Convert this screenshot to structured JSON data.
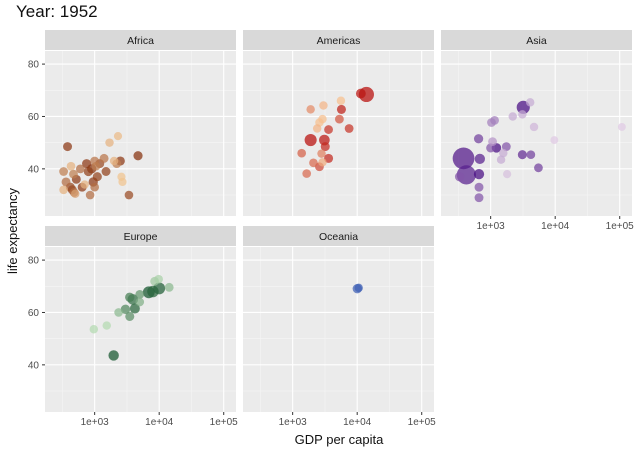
{
  "chart_data": {
    "type": "scatter",
    "title": "Year: 1952",
    "xlabel": "GDP per capita",
    "ylabel": "life expectancy",
    "x_scale": "log10",
    "xlim": [
      170,
      155000
    ],
    "ylim": [
      22,
      85
    ],
    "x_ticks": [
      1000,
      10000,
      100000
    ],
    "x_tick_labels": [
      "1e+03",
      "1e+04",
      "1e+05"
    ],
    "y_ticks": [
      40,
      60,
      80
    ],
    "y_tick_labels": [
      "40",
      "60",
      "80"
    ],
    "grid": true,
    "legend": "none",
    "facets": [
      {
        "name": "Africa",
        "palette": [
          "#fdd49e",
          "#7f2704"
        ],
        "points": [
          [
            380,
            48.5,
            5,
            0.9
          ],
          [
            430,
            41,
            3,
            0.2
          ],
          [
            470,
            38,
            4,
            0.5
          ],
          [
            520,
            36,
            5,
            0.9
          ],
          [
            600,
            40,
            4,
            0.6
          ],
          [
            640,
            33,
            5,
            0.9
          ],
          [
            700,
            34,
            2,
            0.2
          ],
          [
            750,
            42,
            6,
            0.9
          ],
          [
            800,
            39,
            7,
            0.85
          ],
          [
            900,
            40,
            9,
            0.95
          ],
          [
            950,
            35,
            8,
            0.9
          ],
          [
            1000,
            43,
            4,
            0.55
          ],
          [
            1050,
            41,
            3,
            0.5
          ],
          [
            1100,
            37,
            6,
            0.85
          ],
          [
            1200,
            42,
            5,
            0.8
          ],
          [
            1400,
            44,
            5,
            0.55
          ],
          [
            1500,
            39,
            5,
            0.85
          ],
          [
            1700,
            50,
            2,
            0.2
          ],
          [
            2000,
            43,
            2,
            0.2
          ],
          [
            2200,
            42,
            4,
            0.5
          ],
          [
            2300,
            52.5,
            1,
            0.15
          ],
          [
            2500,
            43,
            6,
            0.9
          ],
          [
            2600,
            37,
            1,
            0.1
          ],
          [
            2700,
            35,
            1,
            0.1
          ],
          [
            3400,
            30,
            3,
            0.8
          ],
          [
            4700,
            45,
            7,
            0.95
          ],
          [
            330,
            32,
            3,
            0.2
          ],
          [
            330,
            39,
            4,
            0.5
          ],
          [
            360,
            35,
            5,
            0.6
          ],
          [
            420,
            33,
            6,
            0.8
          ],
          [
            450,
            32,
            6,
            0.8
          ],
          [
            480,
            31,
            4,
            0.6
          ],
          [
            850,
            30,
            3,
            0.6
          ],
          [
            1000,
            33,
            3,
            0.6
          ],
          [
            500,
            30.5,
            2,
            0.3
          ]
        ]
      },
      {
        "name": "Americas",
        "palette": [
          "#fdd49e",
          "#b30000"
        ],
        "points": [
          [
            13900,
            68.4,
            158,
            0.95
          ],
          [
            11400,
            68.75,
            14,
            0.9
          ],
          [
            1900,
            62.7,
            2,
            0.35
          ],
          [
            3000,
            64.2,
            2,
            0.15
          ],
          [
            5600,
            66,
            2,
            0.1
          ],
          [
            5700,
            62.7,
            6,
            0.85
          ],
          [
            5300,
            59,
            4,
            0.6
          ],
          [
            2900,
            59,
            2,
            0.1
          ],
          [
            2600,
            57.7,
            2,
            0.1
          ],
          [
            2400,
            55.4,
            2,
            0.15
          ],
          [
            3600,
            55,
            4,
            0.75
          ],
          [
            7500,
            55.4,
            4,
            0.75
          ],
          [
            1900,
            51,
            56,
            0.95
          ],
          [
            3100,
            51,
            26,
            0.9
          ],
          [
            3200,
            48.5,
            5,
            0.8
          ],
          [
            1380,
            46,
            3,
            0.55
          ],
          [
            2800,
            45.8,
            2,
            0.4
          ],
          [
            3600,
            44,
            6,
            0.8
          ],
          [
            2100,
            42.3,
            3,
            0.5
          ],
          [
            2600,
            40.8,
            4,
            0.65
          ],
          [
            1650,
            38.2,
            3,
            0.5
          ],
          [
            2900,
            42.5,
            2,
            0.2
          ]
        ]
      },
      {
        "name": "Asia",
        "palette": [
          "#e7d4e8",
          "#3f007d"
        ],
        "points": [
          [
            3200,
            63.5,
            86,
            0.95
          ],
          [
            4100,
            65.4,
            2,
            0.2
          ],
          [
            3100,
            60.8,
            2,
            0.2
          ],
          [
            2200,
            60,
            2,
            0.2
          ],
          [
            1150,
            58.5,
            4,
            0.4
          ],
          [
            1030,
            57.7,
            4,
            0.4
          ],
          [
            4700,
            56,
            2,
            0.15
          ],
          [
            108000,
            56,
            0.2,
            0.05
          ],
          [
            9700,
            51,
            0.2,
            0.05
          ],
          [
            650,
            51.5,
            8,
            0.7
          ],
          [
            1070,
            50.4,
            4,
            0.3
          ],
          [
            1230,
            48,
            10,
            0.95
          ],
          [
            1000,
            48,
            6,
            0.6
          ],
          [
            1750,
            48.5,
            4,
            0.6
          ],
          [
            1570,
            46,
            2,
            0.2
          ],
          [
            3100,
            45.4,
            6,
            0.8
          ],
          [
            4200,
            45.4,
            3,
            0.7
          ],
          [
            1450,
            43.5,
            2,
            0.2
          ],
          [
            380,
            44,
            556,
            0.9
          ],
          [
            680,
            43.8,
            20,
            0.85
          ],
          [
            5500,
            40.4,
            4,
            0.7
          ],
          [
            1800,
            38,
            1,
            0.1
          ],
          [
            420,
            37.7,
            372,
            0.85
          ],
          [
            660,
            38,
            20,
            0.95
          ],
          [
            330,
            37,
            8,
            0.6
          ],
          [
            660,
            33,
            5,
            0.6
          ],
          [
            660,
            29,
            5,
            0.6
          ]
        ]
      },
      {
        "name": "Europe",
        "palette": [
          "#c7e9c0",
          "#00441b"
        ],
        "points": [
          [
            970,
            53.6,
            2,
            0.1
          ],
          [
            1540,
            55,
            2,
            0.1
          ],
          [
            1970,
            43.6,
            22,
            0.9
          ],
          [
            2350,
            60,
            3,
            0.3
          ],
          [
            3000,
            61.2,
            9,
            0.6
          ],
          [
            3500,
            58.5,
            6,
            0.55
          ],
          [
            3500,
            65.8,
            9,
            0.65
          ],
          [
            3900,
            65,
            25,
            0.75
          ],
          [
            4200,
            61.5,
            16,
            0.8
          ],
          [
            5000,
            64,
            3,
            0.35
          ],
          [
            5000,
            66.9,
            4,
            0.5
          ],
          [
            6900,
            67.7,
            50,
            0.9
          ],
          [
            8500,
            71.9,
            4,
            0.2
          ],
          [
            9800,
            72.7,
            3,
            0.15
          ],
          [
            10000,
            69.2,
            51,
            0.85
          ],
          [
            14300,
            69.6,
            4,
            0.3
          ],
          [
            8000,
            68,
            42,
            0.8
          ]
        ]
      },
      {
        "name": "Oceania",
        "palette": [
          "#3f5fb4",
          "#3f5fb4"
        ],
        "points": [
          [
            10040,
            69.1,
            8.7,
            1
          ],
          [
            10557,
            69.4,
            1.9,
            1
          ]
        ]
      }
    ]
  }
}
